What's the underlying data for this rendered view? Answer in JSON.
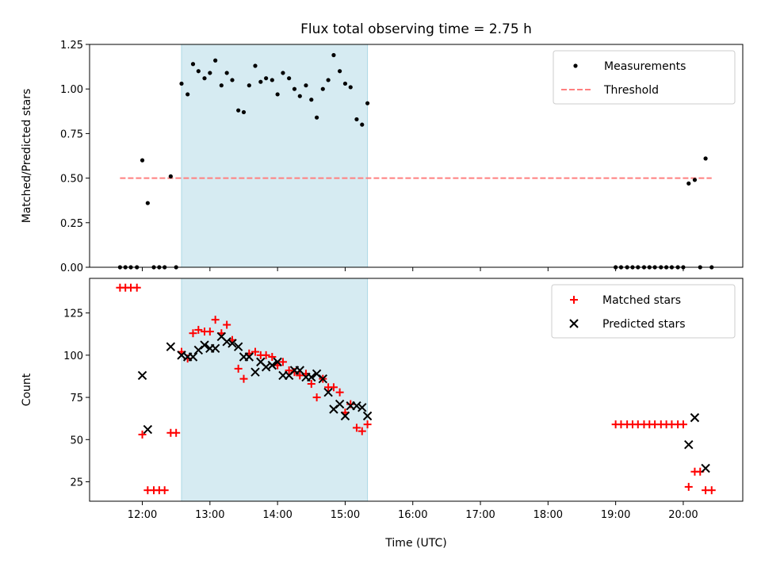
{
  "title": "Flux total observing time = 2.75 h",
  "colors": {
    "shade": "#add8e6",
    "measurement": "#000000",
    "threshold": "#ff7f7f",
    "matched": "#ff0000",
    "predicted": "#000000"
  },
  "chart_data": [
    {
      "type": "scatter",
      "panel": "top",
      "title": "Flux total observing time = 2.75 h",
      "xlabel": "",
      "ylabel": "Matched/Predicted stars",
      "xlim": [
        11.22,
        20.88
      ],
      "ylim": [
        0,
        1.25
      ],
      "yticks": [
        0.0,
        0.25,
        0.5,
        0.75,
        1.0,
        1.25
      ],
      "ytick_labels": [
        "0.00",
        "0.25",
        "0.50",
        "0.75",
        "1.00",
        "1.25"
      ],
      "shaded_interval": [
        12.58,
        15.33
      ],
      "legend": {
        "position": "top-right",
        "entries": [
          "Measurements",
          "Threshold"
        ]
      },
      "threshold": {
        "name": "Threshold",
        "y": 0.5,
        "x_range": [
          11.67,
          20.42
        ]
      },
      "series": [
        {
          "name": "Measurements",
          "marker": "dot",
          "points": [
            [
              11.67,
              0.0
            ],
            [
              11.75,
              0.0
            ],
            [
              11.83,
              0.0
            ],
            [
              11.92,
              0.0
            ],
            [
              12.0,
              0.6
            ],
            [
              12.08,
              0.36
            ],
            [
              12.17,
              0.0
            ],
            [
              12.25,
              0.0
            ],
            [
              12.33,
              0.0
            ],
            [
              12.42,
              0.51
            ],
            [
              12.5,
              0.0
            ],
            [
              12.58,
              1.03
            ],
            [
              12.67,
              0.97
            ],
            [
              12.75,
              1.14
            ],
            [
              12.83,
              1.1
            ],
            [
              12.92,
              1.06
            ],
            [
              13.0,
              1.09
            ],
            [
              13.08,
              1.16
            ],
            [
              13.17,
              1.02
            ],
            [
              13.25,
              1.09
            ],
            [
              13.33,
              1.05
            ],
            [
              13.42,
              0.88
            ],
            [
              13.5,
              0.87
            ],
            [
              13.58,
              1.02
            ],
            [
              13.67,
              1.13
            ],
            [
              13.75,
              1.04
            ],
            [
              13.83,
              1.06
            ],
            [
              13.92,
              1.05
            ],
            [
              14.0,
              0.97
            ],
            [
              14.08,
              1.09
            ],
            [
              14.17,
              1.06
            ],
            [
              14.25,
              1.0
            ],
            [
              14.33,
              0.96
            ],
            [
              14.42,
              1.02
            ],
            [
              14.5,
              0.94
            ],
            [
              14.58,
              0.84
            ],
            [
              14.67,
              1.0
            ],
            [
              14.75,
              1.05
            ],
            [
              14.83,
              1.19
            ],
            [
              14.92,
              1.1
            ],
            [
              15.0,
              1.03
            ],
            [
              15.08,
              1.01
            ],
            [
              15.17,
              0.83
            ],
            [
              15.25,
              0.8
            ],
            [
              15.33,
              0.92
            ],
            [
              19.0,
              0.0
            ],
            [
              19.08,
              0.0
            ],
            [
              19.17,
              0.0
            ],
            [
              19.25,
              0.0
            ],
            [
              19.33,
              0.0
            ],
            [
              19.42,
              0.0
            ],
            [
              19.5,
              0.0
            ],
            [
              19.58,
              0.0
            ],
            [
              19.67,
              0.0
            ],
            [
              19.75,
              0.0
            ],
            [
              19.83,
              0.0
            ],
            [
              19.92,
              0.0
            ],
            [
              20.0,
              0.0
            ],
            [
              20.08,
              0.47
            ],
            [
              20.17,
              0.49
            ],
            [
              20.25,
              0.0
            ],
            [
              20.33,
              0.61
            ],
            [
              20.42,
              0.0
            ]
          ]
        }
      ]
    },
    {
      "type": "scatter",
      "panel": "bottom",
      "title": "",
      "xlabel": "Time (UTC)",
      "ylabel": "Count",
      "xlim": [
        11.22,
        20.88
      ],
      "ylim": [
        13.5,
        145.5
      ],
      "yticks": [
        25,
        50,
        75,
        100,
        125
      ],
      "ytick_labels": [
        "25",
        "50",
        "75",
        "100",
        "125"
      ],
      "xticks": [
        12,
        13,
        14,
        15,
        16,
        17,
        18,
        19,
        20
      ],
      "xtick_labels": [
        "12:00",
        "13:00",
        "14:00",
        "15:00",
        "16:00",
        "17:00",
        "18:00",
        "19:00",
        "20:00"
      ],
      "shaded_interval": [
        12.58,
        15.33
      ],
      "legend": {
        "position": "top-right",
        "entries": [
          "Matched stars",
          "Predicted stars"
        ]
      },
      "series": [
        {
          "name": "Matched stars",
          "marker": "plus",
          "points": [
            [
              11.67,
              140
            ],
            [
              11.75,
              140
            ],
            [
              11.83,
              140
            ],
            [
              11.92,
              140
            ],
            [
              12.0,
              53
            ],
            [
              12.08,
              20
            ],
            [
              12.17,
              20
            ],
            [
              12.25,
              20
            ],
            [
              12.33,
              20
            ],
            [
              12.42,
              54
            ],
            [
              12.5,
              54
            ],
            [
              12.58,
              102
            ],
            [
              12.67,
              98
            ],
            [
              12.75,
              113
            ],
            [
              12.83,
              115
            ],
            [
              12.92,
              114
            ],
            [
              13.0,
              114
            ],
            [
              13.08,
              121
            ],
            [
              13.17,
              113
            ],
            [
              13.25,
              118
            ],
            [
              13.33,
              109
            ],
            [
              13.42,
              92
            ],
            [
              13.5,
              86
            ],
            [
              13.58,
              101
            ],
            [
              13.67,
              102
            ],
            [
              13.75,
              100
            ],
            [
              13.83,
              100
            ],
            [
              13.92,
              99
            ],
            [
              14.0,
              94
            ],
            [
              14.08,
              96
            ],
            [
              14.17,
              91
            ],
            [
              14.25,
              90
            ],
            [
              14.33,
              88
            ],
            [
              14.42,
              89
            ],
            [
              14.5,
              83
            ],
            [
              14.58,
              75
            ],
            [
              14.67,
              86
            ],
            [
              14.75,
              81
            ],
            [
              14.83,
              81
            ],
            [
              14.92,
              78
            ],
            [
              15.0,
              66
            ],
            [
              15.08,
              71
            ],
            [
              15.17,
              57
            ],
            [
              15.25,
              55
            ],
            [
              15.33,
              59
            ],
            [
              19.0,
              59
            ],
            [
              19.08,
              59
            ],
            [
              19.17,
              59
            ],
            [
              19.25,
              59
            ],
            [
              19.33,
              59
            ],
            [
              19.42,
              59
            ],
            [
              19.5,
              59
            ],
            [
              19.58,
              59
            ],
            [
              19.67,
              59
            ],
            [
              19.75,
              59
            ],
            [
              19.83,
              59
            ],
            [
              19.92,
              59
            ],
            [
              20.0,
              59
            ],
            [
              20.08,
              22
            ],
            [
              20.17,
              31
            ],
            [
              20.25,
              31
            ],
            [
              20.33,
              20
            ],
            [
              20.42,
              20
            ]
          ]
        },
        {
          "name": "Predicted stars",
          "marker": "x",
          "points": [
            [
              12.0,
              88
            ],
            [
              12.08,
              56
            ],
            [
              12.42,
              105
            ],
            [
              12.58,
              100
            ],
            [
              12.67,
              99
            ],
            [
              12.75,
              99
            ],
            [
              12.83,
              103
            ],
            [
              12.92,
              106
            ],
            [
              13.0,
              104
            ],
            [
              13.08,
              104
            ],
            [
              13.17,
              111
            ],
            [
              13.25,
              108
            ],
            [
              13.33,
              107
            ],
            [
              13.42,
              105
            ],
            [
              13.5,
              99
            ],
            [
              13.58,
              99
            ],
            [
              13.67,
              90
            ],
            [
              13.75,
              96
            ],
            [
              13.83,
              93
            ],
            [
              13.92,
              94
            ],
            [
              14.0,
              96
            ],
            [
              14.08,
              88
            ],
            [
              14.17,
              88
            ],
            [
              14.25,
              91
            ],
            [
              14.33,
              91
            ],
            [
              14.42,
              87
            ],
            [
              14.5,
              87
            ],
            [
              14.58,
              89
            ],
            [
              14.67,
              86
            ],
            [
              14.75,
              78
            ],
            [
              14.83,
              68
            ],
            [
              14.92,
              71
            ],
            [
              15.0,
              64
            ],
            [
              15.08,
              70
            ],
            [
              15.17,
              70
            ],
            [
              15.25,
              69
            ],
            [
              15.33,
              64
            ],
            [
              20.08,
              47
            ],
            [
              20.17,
              63
            ],
            [
              20.33,
              33
            ]
          ]
        }
      ]
    }
  ]
}
